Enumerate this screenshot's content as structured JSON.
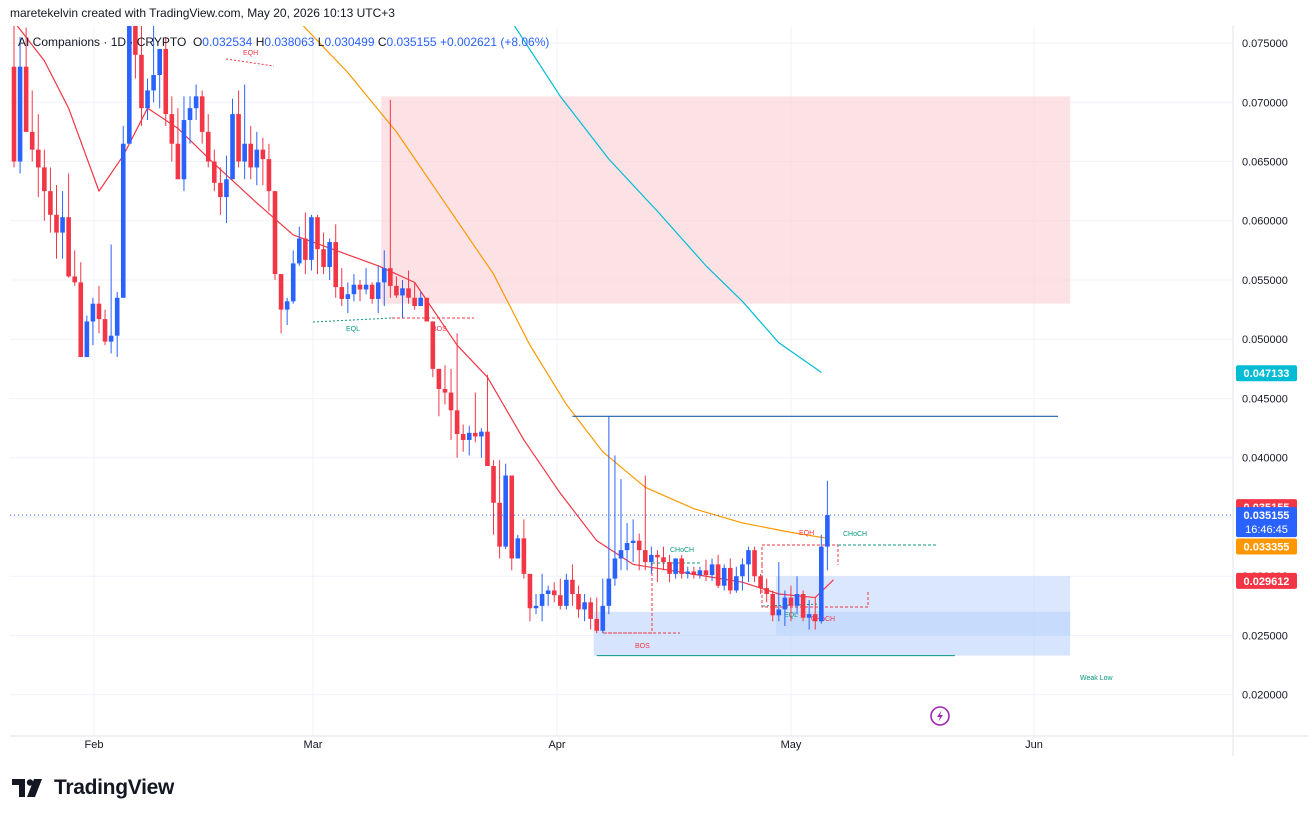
{
  "caption": "maretekelvin created with TradingView.com, May 20, 2026 10:13 UTC+3",
  "legend": {
    "symbol": "AI Companions · 1D · CRYPTO",
    "o_label": "O",
    "o": "0.032534",
    "h_label": "H",
    "h": "0.038063",
    "l_label": "L",
    "l": "0.030499",
    "c_label": "C",
    "c": "0.035155",
    "change": "+0.002621 (+8.06%)"
  },
  "brand": "TradingView",
  "colors": {
    "up": "#2962ff",
    "down": "#f23645",
    "ema_fast": "#f23645",
    "ema_mid": "#ff9800",
    "ema_slow": "#00bcd4",
    "supply_zone": "#fccfd4",
    "demand_zone": "#bbd3fb"
  },
  "chart_data": {
    "type": "candlestick",
    "y_axis": {
      "ticks": [
        "0.075000",
        "0.070000",
        "0.065000",
        "0.060000",
        "0.055000",
        "0.050000",
        "0.045000",
        "0.040000",
        "0.035000",
        "0.030000",
        "0.025000",
        "0.020000"
      ],
      "ylim": [
        0.0185,
        0.0763
      ]
    },
    "x_axis": {
      "ticks": [
        "Feb",
        "Mar",
        "Apr",
        "May",
        "Jun"
      ]
    },
    "price_labels": [
      {
        "value": "0.047133",
        "price": 0.047133,
        "color": "#00bcd4"
      },
      {
        "value": "0.035155",
        "price": 0.035155,
        "color": "#f23645"
      },
      {
        "value": "0.035155",
        "sub": "16:46:45",
        "price": 0.035155,
        "color": "#2962ff"
      },
      {
        "value": "0.033355",
        "price": 0.033355,
        "color": "#ff9800"
      },
      {
        "value": "0.029612",
        "price": 0.029612,
        "color": "#f23645"
      }
    ],
    "annotations": [
      "EQH",
      "EQL",
      "BOS",
      "CHoCH",
      "BOS",
      "EQH",
      "CHoCH",
      "EQL",
      "CHoCH",
      "Weak Low"
    ],
    "candles": [
      [
        0.073,
        0.0773,
        0.0645,
        0.065
      ],
      [
        0.065,
        0.0755,
        0.064,
        0.073
      ],
      [
        0.073,
        0.0763,
        0.0675,
        0.0675
      ],
      [
        0.0675,
        0.071,
        0.065,
        0.066
      ],
      [
        0.066,
        0.069,
        0.062,
        0.0645
      ],
      [
        0.0645,
        0.066,
        0.06,
        0.0625
      ],
      [
        0.0625,
        0.0645,
        0.059,
        0.0605
      ],
      [
        0.0605,
        0.063,
        0.0568,
        0.059
      ],
      [
        0.059,
        0.0625,
        0.0568,
        0.0603
      ],
      [
        0.0603,
        0.064,
        0.0552,
        0.0553
      ],
      [
        0.0553,
        0.0575,
        0.0545,
        0.0548
      ],
      [
        0.0548,
        0.0565,
        0.0485,
        0.0485
      ],
      [
        0.0485,
        0.052,
        0.0485,
        0.0515
      ],
      [
        0.0515,
        0.0535,
        0.0495,
        0.053
      ],
      [
        0.053,
        0.0545,
        0.0505,
        0.0517
      ],
      [
        0.0517,
        0.0525,
        0.0495,
        0.0498
      ],
      [
        0.0498,
        0.058,
        0.0488,
        0.0503
      ],
      [
        0.0503,
        0.054,
        0.0485,
        0.0535
      ],
      [
        0.0535,
        0.068,
        0.0535,
        0.0665
      ],
      [
        0.0665,
        0.078,
        0.0665,
        0.0773
      ],
      [
        0.0773,
        0.078,
        0.072,
        0.074
      ],
      [
        0.074,
        0.0775,
        0.068,
        0.0695
      ],
      [
        0.0695,
        0.072,
        0.0685,
        0.071
      ],
      [
        0.071,
        0.0773,
        0.07,
        0.0723
      ],
      [
        0.0723,
        0.0745,
        0.0695,
        0.0745
      ],
      [
        0.0745,
        0.0755,
        0.068,
        0.069
      ],
      [
        0.069,
        0.0705,
        0.065,
        0.0665
      ],
      [
        0.0665,
        0.0695,
        0.0635,
        0.0635
      ],
      [
        0.0635,
        0.0705,
        0.0625,
        0.0685
      ],
      [
        0.0685,
        0.0705,
        0.0665,
        0.0695
      ],
      [
        0.0695,
        0.0715,
        0.0685,
        0.0705
      ],
      [
        0.0705,
        0.071,
        0.0665,
        0.0675
      ],
      [
        0.0675,
        0.069,
        0.0645,
        0.065
      ],
      [
        0.065,
        0.066,
        0.0625,
        0.0632
      ],
      [
        0.0632,
        0.0645,
        0.0605,
        0.062
      ],
      [
        0.062,
        0.0655,
        0.0598,
        0.0635
      ],
      [
        0.0635,
        0.0703,
        0.0635,
        0.069
      ],
      [
        0.069,
        0.071,
        0.0645,
        0.065
      ],
      [
        0.065,
        0.0715,
        0.0635,
        0.0665
      ],
      [
        0.0665,
        0.068,
        0.0635,
        0.0645
      ],
      [
        0.0645,
        0.0675,
        0.063,
        0.066
      ],
      [
        0.066,
        0.067,
        0.063,
        0.0652
      ],
      [
        0.0652,
        0.0665,
        0.0608,
        0.0625
      ],
      [
        0.0625,
        0.0625,
        0.055,
        0.0555
      ],
      [
        0.0555,
        0.0555,
        0.0505,
        0.0525
      ],
      [
        0.0525,
        0.0535,
        0.0512,
        0.0532
      ],
      [
        0.0532,
        0.0575,
        0.053,
        0.0564
      ],
      [
        0.0564,
        0.0595,
        0.0562,
        0.0585
      ],
      [
        0.0585,
        0.0607,
        0.0555,
        0.0567
      ],
      [
        0.0567,
        0.0605,
        0.0558,
        0.0603
      ],
      [
        0.0603,
        0.0605,
        0.0555,
        0.0576
      ],
      [
        0.0576,
        0.059,
        0.0555,
        0.0561
      ],
      [
        0.0561,
        0.0585,
        0.055,
        0.0582
      ],
      [
        0.0582,
        0.0597,
        0.0535,
        0.0544
      ],
      [
        0.0544,
        0.056,
        0.0528,
        0.0534
      ],
      [
        0.0534,
        0.0548,
        0.0522,
        0.0538
      ],
      [
        0.0538,
        0.0555,
        0.0532,
        0.0546
      ],
      [
        0.0546,
        0.055,
        0.0532,
        0.0542
      ],
      [
        0.0542,
        0.056,
        0.0538,
        0.0546
      ],
      [
        0.0546,
        0.0548,
        0.053,
        0.0534
      ],
      [
        0.0534,
        0.0562,
        0.0522,
        0.0548
      ],
      [
        0.0548,
        0.0575,
        0.0528,
        0.056
      ],
      [
        0.056,
        0.0702,
        0.0535,
        0.0545
      ],
      [
        0.0545,
        0.0553,
        0.0535,
        0.0537
      ],
      [
        0.0537,
        0.055,
        0.0518,
        0.0543
      ],
      [
        0.0543,
        0.0558,
        0.053,
        0.0535
      ],
      [
        0.0535,
        0.0548,
        0.0525,
        0.0528
      ],
      [
        0.0528,
        0.054,
        0.0528,
        0.0535
      ],
      [
        0.0535,
        0.0535,
        0.0515,
        0.0515
      ],
      [
        0.0515,
        0.0515,
        0.0468,
        0.0475
      ],
      [
        0.0475,
        0.0475,
        0.0435,
        0.0458
      ],
      [
        0.0458,
        0.0478,
        0.0445,
        0.0455
      ],
      [
        0.0455,
        0.0475,
        0.0415,
        0.044
      ],
      [
        0.044,
        0.0505,
        0.04,
        0.042
      ],
      [
        0.042,
        0.0428,
        0.0405,
        0.0415
      ],
      [
        0.0415,
        0.0427,
        0.0402,
        0.0421
      ],
      [
        0.0421,
        0.0455,
        0.0413,
        0.0418
      ],
      [
        0.0418,
        0.0425,
        0.04,
        0.0422
      ],
      [
        0.0422,
        0.047,
        0.0395,
        0.0393
      ],
      [
        0.0393,
        0.0398,
        0.0335,
        0.0362
      ],
      [
        0.0362,
        0.0398,
        0.0315,
        0.0325
      ],
      [
        0.0325,
        0.0395,
        0.0323,
        0.0385
      ],
      [
        0.0385,
        0.0385,
        0.0305,
        0.0315
      ],
      [
        0.0315,
        0.0335,
        0.0315,
        0.0332
      ],
      [
        0.0332,
        0.0348,
        0.0298,
        0.0302
      ],
      [
        0.0302,
        0.0302,
        0.0262,
        0.0273
      ],
      [
        0.0273,
        0.0285,
        0.0268,
        0.0275
      ],
      [
        0.0275,
        0.0302,
        0.0262,
        0.0285
      ],
      [
        0.0285,
        0.0292,
        0.0275,
        0.0288
      ],
      [
        0.0288,
        0.0295,
        0.0278,
        0.0284
      ],
      [
        0.0284,
        0.0298,
        0.0272,
        0.0275
      ],
      [
        0.0275,
        0.0302,
        0.0272,
        0.0297
      ],
      [
        0.0297,
        0.031,
        0.0275,
        0.0285
      ],
      [
        0.0285,
        0.0292,
        0.0265,
        0.0272
      ],
      [
        0.0272,
        0.0285,
        0.0262,
        0.0278
      ],
      [
        0.0278,
        0.0282,
        0.0255,
        0.0264
      ],
      [
        0.0264,
        0.0282,
        0.0252,
        0.0254
      ],
      [
        0.0254,
        0.0298,
        0.0252,
        0.0275
      ],
      [
        0.0275,
        0.0435,
        0.0268,
        0.0298
      ],
      [
        0.0298,
        0.0402,
        0.0292,
        0.0315
      ],
      [
        0.0315,
        0.0382,
        0.0305,
        0.0322
      ],
      [
        0.0322,
        0.0345,
        0.0305,
        0.0328
      ],
      [
        0.0328,
        0.0348,
        0.0312,
        0.033
      ],
      [
        0.033,
        0.0336,
        0.0305,
        0.0322
      ],
      [
        0.0322,
        0.0385,
        0.0305,
        0.0312
      ],
      [
        0.0312,
        0.0325,
        0.0302,
        0.0318
      ],
      [
        0.0318,
        0.0322,
        0.0295,
        0.0316
      ],
      [
        0.0316,
        0.0325,
        0.0305,
        0.0312
      ],
      [
        0.0312,
        0.0318,
        0.0295,
        0.0302
      ],
      [
        0.0302,
        0.0315,
        0.0298,
        0.0315
      ],
      [
        0.0315,
        0.0318,
        0.0298,
        0.0302
      ],
      [
        0.0302,
        0.0308,
        0.0298,
        0.0304
      ],
      [
        0.0304,
        0.0308,
        0.0298,
        0.0301
      ],
      [
        0.0301,
        0.0308,
        0.0298,
        0.0305
      ],
      [
        0.0305,
        0.0314,
        0.0296,
        0.0301
      ],
      [
        0.0301,
        0.0315,
        0.0296,
        0.031
      ],
      [
        0.031,
        0.0318,
        0.029,
        0.0292
      ],
      [
        0.0292,
        0.031,
        0.0288,
        0.0307
      ],
      [
        0.0307,
        0.0315,
        0.0285,
        0.0288
      ],
      [
        0.0288,
        0.0308,
        0.0286,
        0.03
      ],
      [
        0.03,
        0.0315,
        0.0288,
        0.031
      ],
      [
        0.031,
        0.0325,
        0.0295,
        0.0322
      ],
      [
        0.0322,
        0.0325,
        0.0295,
        0.03
      ],
      [
        0.03,
        0.0302,
        0.0285,
        0.029
      ],
      [
        0.029,
        0.0298,
        0.0278,
        0.0285
      ],
      [
        0.0285,
        0.0288,
        0.0262,
        0.0267
      ],
      [
        0.0267,
        0.0312,
        0.0262,
        0.0272
      ],
      [
        0.0272,
        0.0288,
        0.0258,
        0.0282
      ],
      [
        0.0282,
        0.0292,
        0.0262,
        0.0275
      ],
      [
        0.0275,
        0.03,
        0.0268,
        0.0285
      ],
      [
        0.0285,
        0.0288,
        0.0262,
        0.0265
      ],
      [
        0.0265,
        0.028,
        0.0255,
        0.0268
      ],
      [
        0.0268,
        0.0282,
        0.0255,
        0.0262
      ],
      [
        0.0262,
        0.0335,
        0.026,
        0.0325
      ],
      [
        0.0325,
        0.038063,
        0.030499,
        0.035155
      ]
    ],
    "ema_fast": [
      [
        0,
        0.0768
      ],
      [
        5,
        0.0735
      ],
      [
        9,
        0.0695
      ],
      [
        14,
        0.0625
      ],
      [
        18,
        0.0655
      ],
      [
        22,
        0.0695
      ],
      [
        27,
        0.0678
      ],
      [
        33,
        0.0648
      ],
      [
        40,
        0.0615
      ],
      [
        46,
        0.0588
      ],
      [
        53,
        0.0575
      ],
      [
        60,
        0.0562
      ],
      [
        66,
        0.0548
      ],
      [
        73,
        0.0495
      ],
      [
        78,
        0.0468
      ],
      [
        84,
        0.0415
      ],
      [
        90,
        0.037
      ],
      [
        96,
        0.033
      ],
      [
        102,
        0.031
      ],
      [
        108,
        0.0305
      ],
      [
        114,
        0.03
      ],
      [
        120,
        0.0295
      ],
      [
        126,
        0.0285
      ],
      [
        132,
        0.0282
      ],
      [
        135,
        0.0297
      ]
    ],
    "ema_mid": [
      [
        47,
        0.0768
      ],
      [
        55,
        0.0725
      ],
      [
        63,
        0.0675
      ],
      [
        71,
        0.0615
      ],
      [
        79,
        0.0555
      ],
      [
        85,
        0.0495
      ],
      [
        91,
        0.0445
      ],
      [
        97,
        0.0405
      ],
      [
        104,
        0.0375
      ],
      [
        112,
        0.0357
      ],
      [
        120,
        0.0345
      ],
      [
        128,
        0.0337
      ],
      [
        134,
        0.0332
      ]
    ],
    "ema_slow": [
      [
        82,
        0.0768
      ],
      [
        90,
        0.0705
      ],
      [
        98,
        0.0652
      ],
      [
        106,
        0.0608
      ],
      [
        114,
        0.0562
      ],
      [
        120,
        0.0532
      ],
      [
        126,
        0.0497
      ],
      [
        133,
        0.0472
      ]
    ],
    "zones": [
      {
        "name": "supply",
        "x0": 61,
        "x1": 174,
        "y0": 0.053,
        "y1": 0.0705
      },
      {
        "name": "demand-upper",
        "x0": 96,
        "x1": 174,
        "y0": 0.0233,
        "y1": 0.027
      },
      {
        "name": "demand-lower",
        "x0": 126,
        "x1": 174,
        "y0": 0.025,
        "y1": 0.03
      }
    ],
    "levels": [
      {
        "name": "resistance",
        "x0": 92,
        "x1": 172,
        "y": 0.0435,
        "color": "#1e5fa8"
      },
      {
        "name": "weak-low",
        "x0": 96,
        "x1": 155,
        "y": 0.0233,
        "color": "#089981"
      }
    ]
  }
}
